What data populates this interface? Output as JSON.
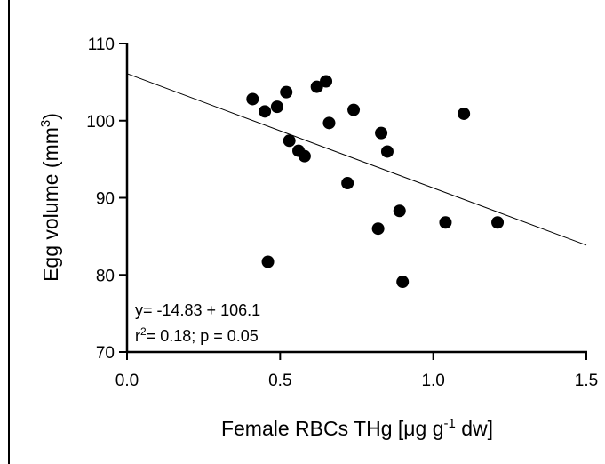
{
  "chart_data": {
    "type": "scatter",
    "xlabel": "Female RBCs THg [μg g⁻¹ dw]",
    "xlabel_parts": {
      "pre": "Female RBCs THg [μg g",
      "sup": "-1",
      "post": " dw]"
    },
    "ylabel": "Egg volume (mm³)",
    "ylabel_parts": {
      "pre": "Egg volume (mm",
      "sup": "3",
      "post": ")"
    },
    "xlim": [
      0.0,
      1.5
    ],
    "ylim": [
      70,
      110
    ],
    "xticks": [
      {
        "value": 0.0,
        "label": "0.0"
      },
      {
        "value": 0.5,
        "label": "0.5"
      },
      {
        "value": 1.0,
        "label": "1.0"
      },
      {
        "value": 1.5,
        "label": "1.5"
      }
    ],
    "yticks": [
      {
        "value": 70,
        "label": "70"
      },
      {
        "value": 80,
        "label": "80"
      },
      {
        "value": 90,
        "label": "90"
      },
      {
        "value": 100,
        "label": "100"
      },
      {
        "value": 110,
        "label": "110"
      }
    ],
    "grid": false,
    "points": [
      {
        "x": 0.41,
        "y": 102.8
      },
      {
        "x": 0.45,
        "y": 101.2
      },
      {
        "x": 0.49,
        "y": 101.8
      },
      {
        "x": 0.52,
        "y": 103.7
      },
      {
        "x": 0.53,
        "y": 97.4
      },
      {
        "x": 0.56,
        "y": 96.1
      },
      {
        "x": 0.58,
        "y": 95.4
      },
      {
        "x": 0.62,
        "y": 104.4
      },
      {
        "x": 0.65,
        "y": 105.1
      },
      {
        "x": 0.66,
        "y": 99.7
      },
      {
        "x": 0.74,
        "y": 101.4
      },
      {
        "x": 0.72,
        "y": 91.9
      },
      {
        "x": 0.83,
        "y": 98.4
      },
      {
        "x": 0.85,
        "y": 96.0
      },
      {
        "x": 0.82,
        "y": 86.0
      },
      {
        "x": 0.89,
        "y": 88.3
      },
      {
        "x": 0.9,
        "y": 79.1
      },
      {
        "x": 0.46,
        "y": 81.7
      },
      {
        "x": 1.04,
        "y": 86.8
      },
      {
        "x": 1.1,
        "y": 100.9
      },
      {
        "x": 1.21,
        "y": 86.8
      }
    ],
    "regression": {
      "slope": -14.83,
      "intercept": 106.1
    },
    "annotations": {
      "equation": "y= -14.83 + 106.1",
      "stats_r": "r",
      "stats_sup": "2",
      "stats_rest": "= 0.18; p = 0.05"
    }
  }
}
